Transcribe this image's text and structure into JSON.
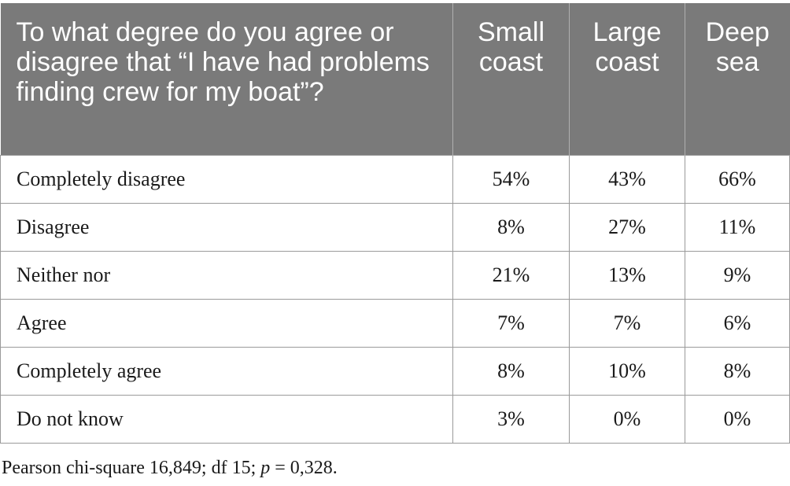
{
  "table": {
    "header": {
      "question": "To what degree do you agree or disagree that “I have had problems finding crew for my boat”?",
      "columns": [
        "Small coast",
        "Large coast",
        "Deep sea"
      ]
    },
    "rows": [
      {
        "label": "Completely disagree",
        "values": [
          "54%",
          "43%",
          "66%"
        ]
      },
      {
        "label": "Disagree",
        "values": [
          "8%",
          "27%",
          "11%"
        ]
      },
      {
        "label": "Neither nor",
        "values": [
          "21%",
          "13%",
          "9%"
        ]
      },
      {
        "label": "Agree",
        "values": [
          "7%",
          "7%",
          "6%"
        ]
      },
      {
        "label": "Completely agree",
        "values": [
          "8%",
          "10%",
          "8%"
        ]
      },
      {
        "label": "Do not know",
        "values": [
          "3%",
          "0%",
          "0%"
        ]
      }
    ]
  },
  "footnote": {
    "prefix": "Pearson chi-square 16,849; df 15; ",
    "p_symbol": "p",
    "suffix": " = 0,328."
  }
}
